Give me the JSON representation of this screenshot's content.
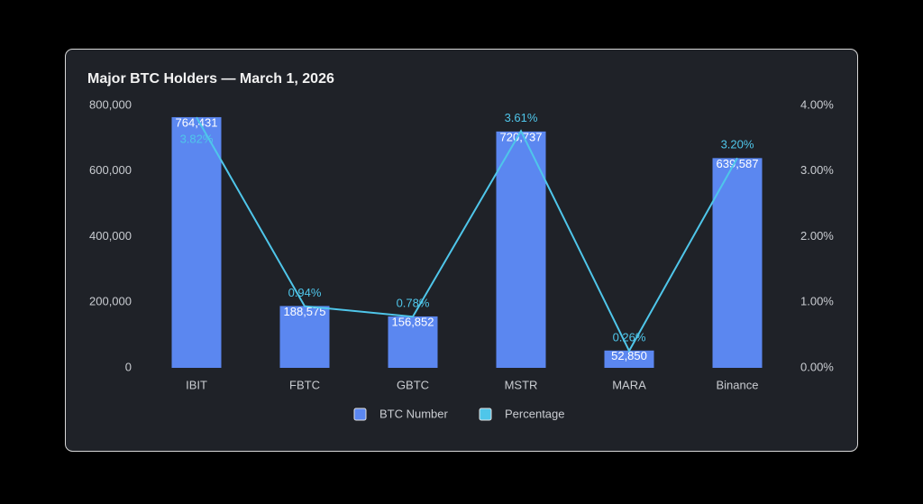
{
  "chart_data": {
    "type": "bar",
    "title": "Major BTC Holders — March 1, 2026",
    "categories": [
      "IBIT",
      "FBTC",
      "GBTC",
      "MSTR",
      "MARA",
      "Binance"
    ],
    "series": [
      {
        "name": "BTC Number",
        "color": "#5b87f0",
        "type": "bar",
        "values": [
          764431,
          188575,
          156852,
          720737,
          52850,
          639587
        ],
        "value_labels": [
          "764,431",
          "188,575",
          "156,852",
          "720,737",
          "52,850",
          "639,587"
        ]
      },
      {
        "name": "Percentage",
        "color": "#4fc6ea",
        "type": "line",
        "axis": "y2",
        "values": [
          3.82,
          0.94,
          0.78,
          3.61,
          0.26,
          3.2
        ],
        "value_labels": [
          "3.82%",
          "0.94%",
          "0.78%",
          "3.61%",
          "0.26%",
          "3.20%"
        ]
      }
    ],
    "ylim": [
      0,
      800000
    ],
    "yticks": [
      0,
      {
        "value": 200000,
        "label": "200,000"
      },
      {
        "value": 400000,
        "label": "400,000"
      },
      {
        "value": 600000,
        "label": "600,000"
      },
      {
        "value": 800000,
        "label": "800,000"
      }
    ],
    "y2lim": [
      0,
      4
    ],
    "y2ticks": [
      {
        "value": 0,
        "label": "0.00%"
      },
      {
        "value": 1,
        "label": "1.00%"
      },
      {
        "value": 2,
        "label": "2.00%"
      },
      {
        "value": 3,
        "label": "3.00%"
      },
      {
        "value": 4,
        "label": "4.00%"
      }
    ]
  }
}
